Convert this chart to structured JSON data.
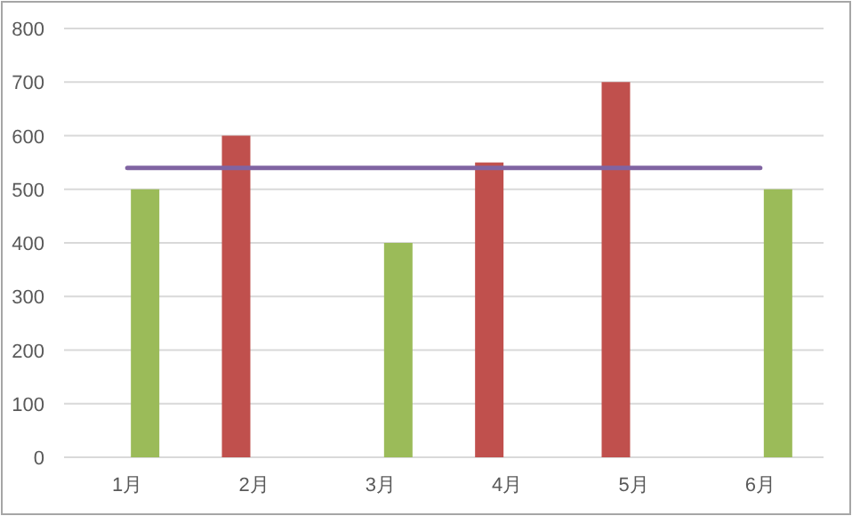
{
  "chart_data": {
    "type": "bar",
    "categories": [
      "1月",
      "2月",
      "3月",
      "4月",
      "5月",
      "6月"
    ],
    "series": [
      {
        "color": "#c0504d",
        "values": [
          null,
          600,
          null,
          550,
          700,
          null
        ]
      },
      {
        "color": "#9bbb59",
        "values": [
          500,
          null,
          400,
          null,
          null,
          500
        ]
      },
      {
        "type": "line",
        "color": "#8064a2",
        "values": [
          540,
          540,
          540,
          540,
          540,
          540
        ]
      }
    ],
    "ylim": [
      0,
      800
    ],
    "yticks": [
      0,
      100,
      200,
      300,
      400,
      500,
      600,
      700,
      800
    ],
    "grid": "y"
  }
}
